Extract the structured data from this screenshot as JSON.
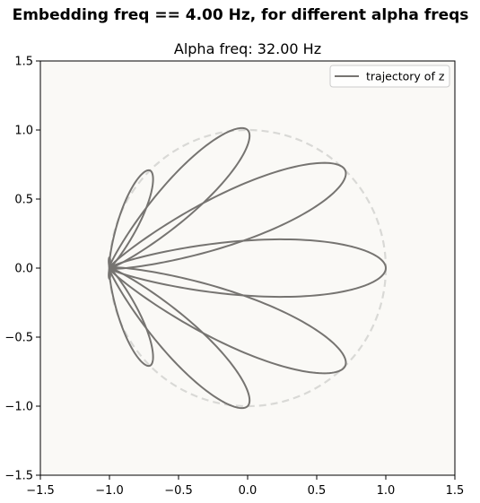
{
  "suptitle": "Embedding freq == 4.00 Hz, for different alpha freqs",
  "chart_data": {
    "type": "line",
    "title": "Alpha freq: 32.00 Hz",
    "xlabel": "",
    "ylabel": "",
    "xlim": [
      -1.5,
      1.5
    ],
    "ylim": [
      -1.5,
      1.5
    ],
    "xticks": [
      "−1.5",
      "−1.0",
      "−0.5",
      "0.0",
      "0.5",
      "1.0",
      "1.5"
    ],
    "yticks": [
      "1.5",
      "1.0",
      "0.5",
      "0.0",
      "−0.5",
      "−1.0",
      "−1.5"
    ],
    "xtick_values": [
      -1.5,
      -1.0,
      -0.5,
      0.0,
      0.5,
      1.0,
      1.5
    ],
    "ytick_values": [
      1.5,
      1.0,
      0.5,
      0.0,
      -0.5,
      -1.0,
      -1.5
    ],
    "grid": false,
    "legend_position": "top-right",
    "series": [
      {
        "name": "trajectory of z",
        "color": "#767471",
        "description": "eight-petal rose; petal tips on unit circle",
        "petal_tips": [
          [
            1.0,
            0.0
          ],
          [
            0.707,
            0.707
          ],
          [
            0.0,
            1.0
          ],
          [
            -0.707,
            0.707
          ],
          [
            -1.0,
            0.0
          ],
          [
            -0.707,
            -0.707
          ],
          [
            0.0,
            -1.0
          ],
          [
            0.707,
            -0.707
          ]
        ]
      },
      {
        "name": "",
        "style": "dashed",
        "color": "#d9d9d6",
        "description": "unit circle",
        "radius": 1.0
      }
    ],
    "axes_background": "#faf9f6"
  }
}
